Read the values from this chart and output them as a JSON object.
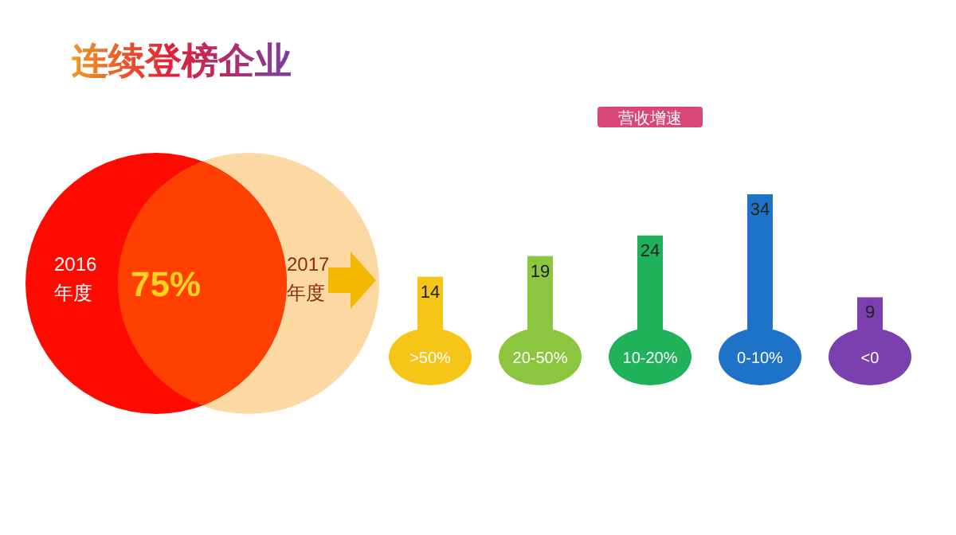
{
  "chart_data": [
    {
      "type": "other",
      "title": "连续登榜企业",
      "categories": [
        "2016\n年度",
        "2017\n年度"
      ],
      "colors": [
        "#ff0a00",
        "#fcd8a2"
      ],
      "annotations": [
        "75%"
      ]
    },
    {
      "type": "bar",
      "title": "营收增速",
      "categories": [
        ">50%",
        "20-50%",
        "10-20%",
        "0-10%",
        "<0"
      ],
      "values": [
        14,
        19,
        24,
        34,
        9
      ],
      "colors": [
        "#f5c518",
        "#8cc63f",
        "#1fb25a",
        "#1e73c8",
        "#7b3fb0"
      ],
      "data_labels": true
    }
  ]
}
